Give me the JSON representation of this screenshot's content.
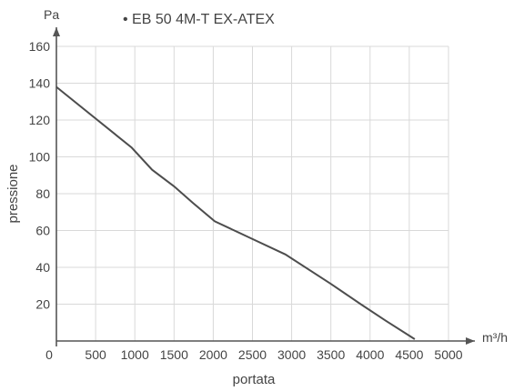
{
  "chart_data": {
    "type": "line",
    "title": "• EB 50 4M-T EX-ATEX",
    "xlabel": "portata",
    "ylabel": "pressione",
    "x_unit": "m³/h",
    "y_unit": "Pa",
    "xlim": [
      0,
      5000
    ],
    "ylim": [
      0,
      160
    ],
    "x_ticks": [
      0,
      500,
      1000,
      1500,
      2000,
      2500,
      3000,
      3500,
      4000,
      4500,
      5000
    ],
    "y_ticks": [
      20,
      40,
      60,
      80,
      100,
      120,
      140,
      160
    ],
    "grid": true,
    "series": [
      {
        "x": [
          0,
          960,
          1220,
          1500,
          1740,
          2020,
          2470,
          2920,
          3500,
          3880,
          4200,
          4570
        ],
        "y": [
          138,
          105,
          93,
          84,
          75,
          65,
          56,
          47,
          31,
          20,
          11,
          1
        ]
      }
    ],
    "line_color": "#4d4d4d"
  }
}
